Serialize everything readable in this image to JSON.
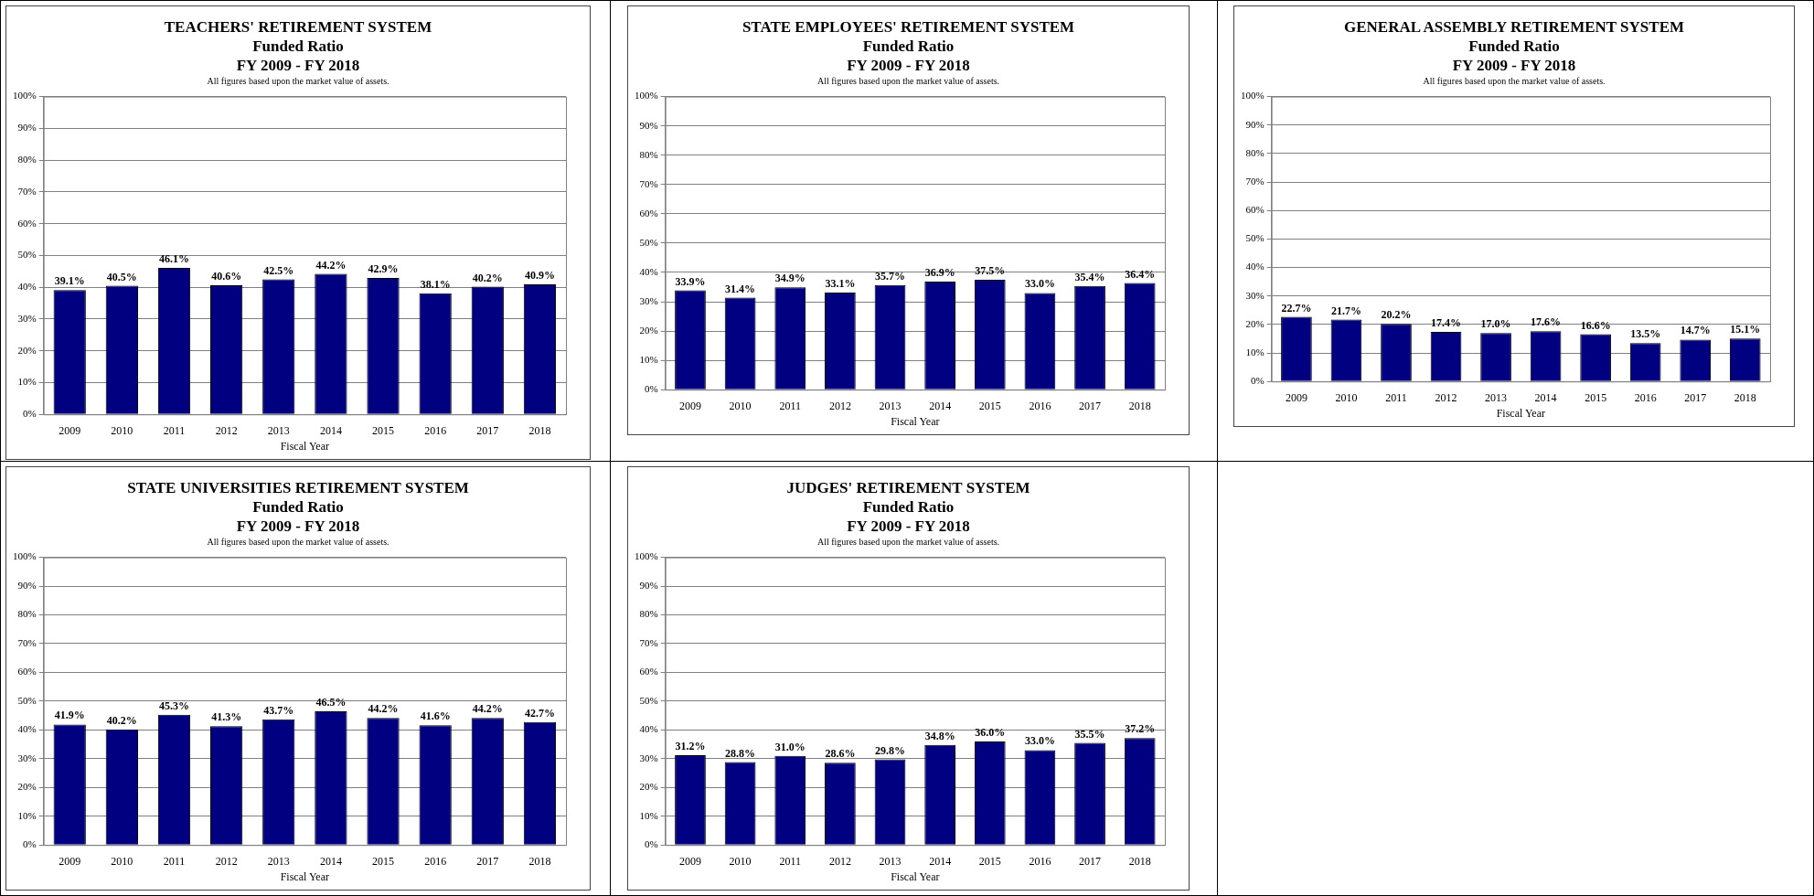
{
  "chart_data": [
    {
      "type": "bar",
      "title": "TEACHERS' RETIREMENT SYSTEM",
      "subtitle": "Funded Ratio",
      "annotations": [
        "FY 2009 - FY 2018",
        "All figures based upon the market value of assets."
      ],
      "xlabel": "Fiscal Year",
      "categories": [
        "2009",
        "2010",
        "2011",
        "2012",
        "2013",
        "2014",
        "2015",
        "2016",
        "2017",
        "2018"
      ],
      "values": [
        39.1,
        40.5,
        46.1,
        40.6,
        42.5,
        44.2,
        42.9,
        38.1,
        40.2,
        40.9
      ],
      "value_labels": [
        "39.1%",
        "40.5%",
        "46.1%",
        "40.6%",
        "42.5%",
        "44.2%",
        "42.9%",
        "38.1%",
        "40.2%",
        "40.9%"
      ],
      "color": "#000080",
      "ylim": [
        0,
        100
      ],
      "yticks": [
        {
          "value": 0,
          "label": "0%"
        },
        {
          "value": 10,
          "label": "10%"
        },
        {
          "value": 20,
          "label": "20%"
        },
        {
          "value": 30,
          "label": "30%"
        },
        {
          "value": 40,
          "label": "40%"
        },
        {
          "value": 50,
          "label": "50%"
        },
        {
          "value": 60,
          "label": "60%"
        },
        {
          "value": 70,
          "label": "70%"
        },
        {
          "value": 80,
          "label": "80%"
        },
        {
          "value": 90,
          "label": "90%"
        },
        {
          "value": 100,
          "label": "100%"
        }
      ],
      "grid": "y",
      "legend": false
    },
    {
      "type": "bar",
      "title": "STATE EMPLOYEES' RETIREMENT SYSTEM",
      "subtitle": "Funded Ratio",
      "annotations": [
        "FY 2009 - FY 2018",
        "All figures based upon the market value of assets."
      ],
      "xlabel": "Fiscal Year",
      "categories": [
        "2009",
        "2010",
        "2011",
        "2012",
        "2013",
        "2014",
        "2015",
        "2016",
        "2017",
        "2018"
      ],
      "values": [
        33.9,
        31.4,
        34.9,
        33.1,
        35.7,
        36.9,
        37.5,
        33.0,
        35.4,
        36.4
      ],
      "value_labels": [
        "33.9%",
        "31.4%",
        "34.9%",
        "33.1%",
        "35.7%",
        "36.9%",
        "37.5%",
        "33.0%",
        "35.4%",
        "36.4%"
      ],
      "color": "#000080",
      "ylim": [
        0,
        100
      ],
      "yticks": [
        {
          "value": 0,
          "label": "0%"
        },
        {
          "value": 10,
          "label": "10%"
        },
        {
          "value": 20,
          "label": "20%"
        },
        {
          "value": 30,
          "label": "30%"
        },
        {
          "value": 40,
          "label": "40%"
        },
        {
          "value": 50,
          "label": "50%"
        },
        {
          "value": 60,
          "label": "60%"
        },
        {
          "value": 70,
          "label": "70%"
        },
        {
          "value": 80,
          "label": "80%"
        },
        {
          "value": 90,
          "label": "90%"
        },
        {
          "value": 100,
          "label": "100%"
        }
      ],
      "grid": "y",
      "legend": false
    },
    {
      "type": "bar",
      "title": "GENERAL ASSEMBLY RETIREMENT SYSTEM",
      "subtitle": "Funded Ratio",
      "annotations": [
        "FY 2009 - FY 2018",
        "All figures based upon the market value of assets."
      ],
      "xlabel": "Fiscal Year",
      "categories": [
        "2009",
        "2010",
        "2011",
        "2012",
        "2013",
        "2014",
        "2015",
        "2016",
        "2017",
        "2018"
      ],
      "values": [
        22.7,
        21.7,
        20.2,
        17.4,
        17.0,
        17.6,
        16.6,
        13.5,
        14.7,
        15.1
      ],
      "value_labels": [
        "22.7%",
        "21.7%",
        "20.2%",
        "17.4%",
        "17.0%",
        "17.6%",
        "16.6%",
        "13.5%",
        "14.7%",
        "15.1%"
      ],
      "color": "#000080",
      "ylim": [
        0,
        100
      ],
      "yticks": [
        {
          "value": 0,
          "label": "0%"
        },
        {
          "value": 10,
          "label": "10%"
        },
        {
          "value": 20,
          "label": "20%"
        },
        {
          "value": 30,
          "label": "30%"
        },
        {
          "value": 40,
          "label": "40%"
        },
        {
          "value": 50,
          "label": "50%"
        },
        {
          "value": 60,
          "label": "60%"
        },
        {
          "value": 70,
          "label": "70%"
        },
        {
          "value": 80,
          "label": "80%"
        },
        {
          "value": 90,
          "label": "90%"
        },
        {
          "value": 100,
          "label": "100%"
        }
      ],
      "grid": "y",
      "legend": false
    },
    {
      "type": "bar",
      "title": "STATE UNIVERSITIES RETIREMENT SYSTEM",
      "subtitle": "Funded Ratio",
      "annotations": [
        "FY 2009 - FY 2018",
        "All figures based upon the market value of assets."
      ],
      "xlabel": "Fiscal Year",
      "categories": [
        "2009",
        "2010",
        "2011",
        "2012",
        "2013",
        "2014",
        "2015",
        "2016",
        "2017",
        "2018"
      ],
      "values": [
        41.9,
        40.2,
        45.3,
        41.3,
        43.7,
        46.5,
        44.2,
        41.6,
        44.2,
        42.7
      ],
      "value_labels": [
        "41.9%",
        "40.2%",
        "45.3%",
        "41.3%",
        "43.7%",
        "46.5%",
        "44.2%",
        "41.6%",
        "44.2%",
        "42.7%"
      ],
      "color": "#000080",
      "ylim": [
        0,
        100
      ],
      "yticks": [
        {
          "value": 0,
          "label": "0%"
        },
        {
          "value": 10,
          "label": "10%"
        },
        {
          "value": 20,
          "label": "20%"
        },
        {
          "value": 30,
          "label": "30%"
        },
        {
          "value": 40,
          "label": "40%"
        },
        {
          "value": 50,
          "label": "50%"
        },
        {
          "value": 60,
          "label": "60%"
        },
        {
          "value": 70,
          "label": "70%"
        },
        {
          "value": 80,
          "label": "80%"
        },
        {
          "value": 90,
          "label": "90%"
        },
        {
          "value": 100,
          "label": "100%"
        }
      ],
      "grid": "y",
      "legend": false
    },
    {
      "type": "bar",
      "title": "JUDGES' RETIREMENT SYSTEM",
      "subtitle": "Funded Ratio",
      "annotations": [
        "FY 2009 - FY 2018",
        "All figures based upon the market value of assets."
      ],
      "xlabel": "Fiscal Year",
      "categories": [
        "2009",
        "2010",
        "2011",
        "2012",
        "2013",
        "2014",
        "2015",
        "2016",
        "2017",
        "2018"
      ],
      "values": [
        31.2,
        28.8,
        31.0,
        28.6,
        29.8,
        34.8,
        36.0,
        33.0,
        35.5,
        37.2
      ],
      "value_labels": [
        "31.2%",
        "28.8%",
        "31.0%",
        "28.6%",
        "29.8%",
        "34.8%",
        "36.0%",
        "33.0%",
        "35.5%",
        "37.2%"
      ],
      "color": "#000080",
      "ylim": [
        0,
        100
      ],
      "yticks": [
        {
          "value": 0,
          "label": "0%"
        },
        {
          "value": 10,
          "label": "10%"
        },
        {
          "value": 20,
          "label": "20%"
        },
        {
          "value": 30,
          "label": "30%"
        },
        {
          "value": 40,
          "label": "40%"
        },
        {
          "value": 50,
          "label": "50%"
        },
        {
          "value": 60,
          "label": "60%"
        },
        {
          "value": 70,
          "label": "70%"
        },
        {
          "value": 80,
          "label": "80%"
        },
        {
          "value": 90,
          "label": "90%"
        },
        {
          "value": 100,
          "label": "100%"
        }
      ],
      "grid": "y",
      "legend": false
    }
  ]
}
